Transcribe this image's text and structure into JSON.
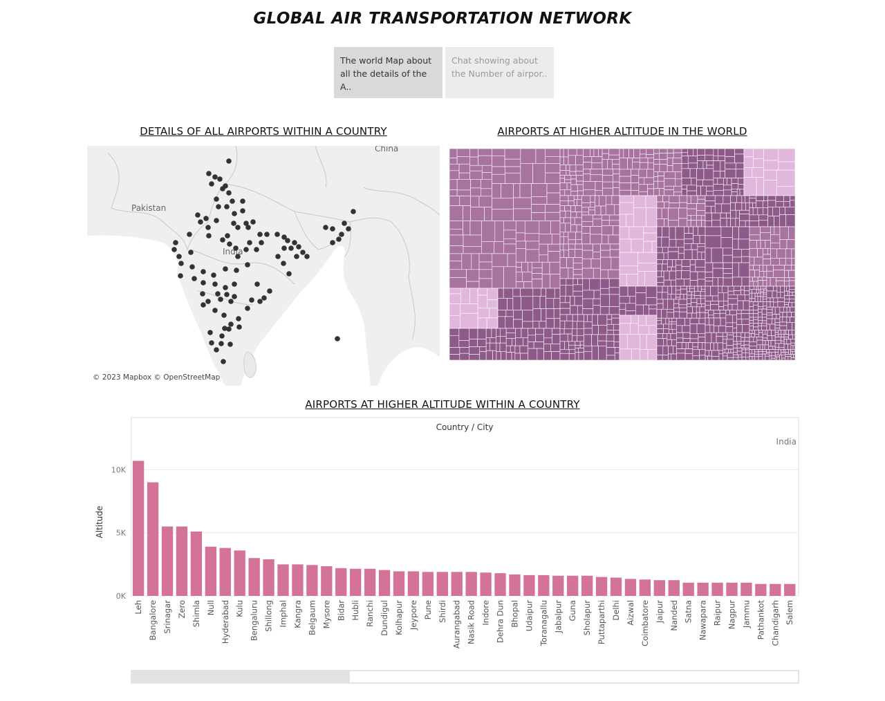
{
  "page": {
    "title": "GLOBAL AIR TRANSPORTATION NETWORK"
  },
  "tabs": [
    {
      "label": "The world Map about\nall the details of the A..",
      "active": true
    },
    {
      "label": "Chat showing about\nthe Number of airpor..",
      "active": false
    }
  ],
  "map": {
    "title": "DETAILS OF ALL AIRPORTS WITHIN A COUNTRY",
    "labels": {
      "china": "China",
      "pakistan": "Pakistan",
      "india": "India"
    },
    "attribution": "© 2023 Mapbox © OpenStreetMap",
    "colors": {
      "land": "#efefef",
      "water": "#ffffff",
      "dot": "#333333"
    }
  },
  "treemap": {
    "title": "AIRPORTS  AT HIGHER ALTITUDE IN THE WORLD",
    "colors": {
      "dark": "#8e5a8a",
      "mid": "#a8739f",
      "light": "#e2b7dc"
    }
  },
  "bar_chart": {
    "title": "AIRPORTS AT HIGHER ALTITUDE WITHIN A COUNTRY",
    "header": "Country / City",
    "pane_label": "India",
    "bar_color": "#d4739a"
  },
  "chart_data": {
    "type": "bar",
    "title": "AIRPORTS AT HIGHER ALTITUDE WITHIN A COUNTRY",
    "xlabel": "",
    "ylabel": "Altitude",
    "ylim": [
      0,
      11500
    ],
    "y_ticks": [
      {
        "value": 0,
        "label": "0K"
      },
      {
        "value": 5000,
        "label": "5K"
      },
      {
        "value": 10000,
        "label": "10K"
      }
    ],
    "grid": true,
    "categories": [
      "Leh",
      "Bangalore",
      "Srinagar",
      "Zero",
      "Shimla",
      "Null",
      "Hyderabad",
      "Kulu",
      "Bengaluru",
      "Shillong",
      "Imphal",
      "Kangra",
      "Belgaum",
      "Mysore",
      "Bidar",
      "Hubli",
      "Ranchi",
      "Dundigul",
      "Kolhapur",
      "Jeypore",
      "Pune",
      "Shirdi",
      "Aurangabad",
      "Nasik Road",
      "Indore",
      "Dehra Dun",
      "Bhopal",
      "Udaipur",
      "Toranagallu",
      "Jabalpur",
      "Guna",
      "Sholapur",
      "Puttaparthi",
      "Delhi",
      "Aizwal",
      "Coimbatore",
      "Jaipur",
      "Nanded",
      "Satna",
      "Nawapara",
      "Raipur",
      "Nagpur",
      "Jammu",
      "Pathankot",
      "Chandigarh",
      "Salem"
    ],
    "values": [
      10700,
      9000,
      5500,
      5500,
      5100,
      3900,
      3800,
      3600,
      3000,
      2900,
      2500,
      2500,
      2450,
      2350,
      2200,
      2150,
      2150,
      2050,
      1950,
      1950,
      1900,
      1900,
      1900,
      1900,
      1850,
      1800,
      1700,
      1650,
      1650,
      1600,
      1600,
      1600,
      1500,
      1450,
      1350,
      1300,
      1250,
      1250,
      1050,
      1050,
      1050,
      1050,
      1050,
      950,
      950,
      950
    ]
  }
}
